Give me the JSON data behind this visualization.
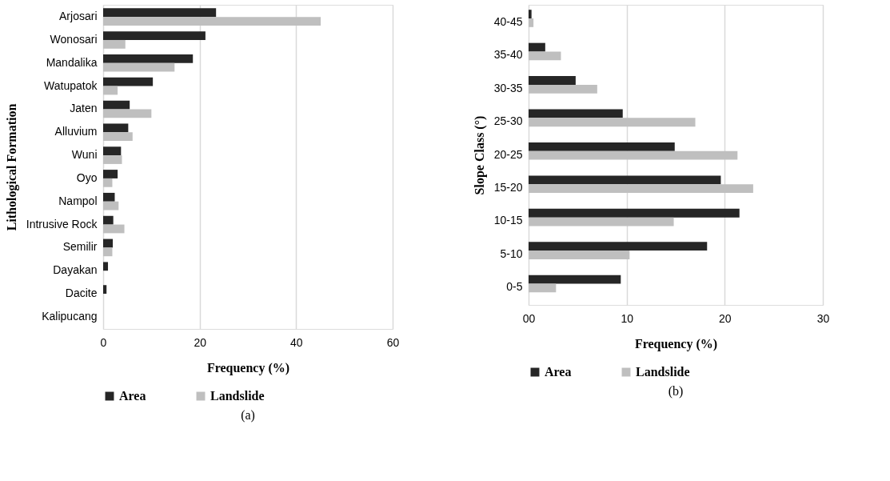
{
  "chart_data": [
    {
      "type": "bar",
      "orientation": "horizontal",
      "ylabel": "Lithological Formation",
      "xlabel": "Frequency (%)",
      "categories": [
        "Arjosari",
        "Wonosari",
        "Mandalika",
        "Watupatok",
        "Jaten",
        "Alluvium",
        "Wuni",
        "Oyo",
        "Nampol",
        "Intrusive Rock",
        "Semilir",
        "Dayakan",
        "Dacite",
        "Kalipucang"
      ],
      "series": [
        {
          "name": "Area",
          "color": "#262626",
          "values": [
            23.4,
            21.2,
            18.6,
            10.3,
            5.5,
            5.2,
            3.7,
            3.0,
            2.4,
            2.1,
            2.0,
            1.0,
            0.7,
            0
          ]
        },
        {
          "name": "Landslide",
          "color": "#bfbfbf",
          "values": [
            45.1,
            4.6,
            14.8,
            3.0,
            10.0,
            6.1,
            3.9,
            1.9,
            3.2,
            4.4,
            1.9,
            null,
            null,
            0
          ]
        }
      ],
      "xlim": [
        0,
        60
      ],
      "xticks": [
        0,
        20,
        40,
        60
      ],
      "grid": "x",
      "legend": "bottom",
      "annotations": [
        "(a)"
      ]
    },
    {
      "type": "bar",
      "orientation": "horizontal",
      "ylabel": "Slope Class (°)",
      "xlabel": "Frequency (%)",
      "categories": [
        "40-45",
        "35-40",
        "30-35",
        "25-30",
        "20-25",
        "15-20",
        "10-15",
        "5-10",
        "0-5"
      ],
      "series": [
        {
          "name": "Area",
          "color": "#262626",
          "values": [
            0.3,
            1.7,
            4.8,
            9.6,
            14.9,
            19.6,
            21.5,
            18.2,
            9.4
          ]
        },
        {
          "name": "Landslide",
          "color": "#bfbfbf",
          "values": [
            0.5,
            3.3,
            7.0,
            17.0,
            21.3,
            22.9,
            14.8,
            10.3,
            2.8
          ]
        }
      ],
      "xlim": [
        0,
        30
      ],
      "xticks": [
        {
          "value": 0,
          "label": "00"
        },
        10,
        20,
        30
      ],
      "grid": "x",
      "legend": "bottom",
      "annotations": [
        "(b)"
      ]
    }
  ]
}
